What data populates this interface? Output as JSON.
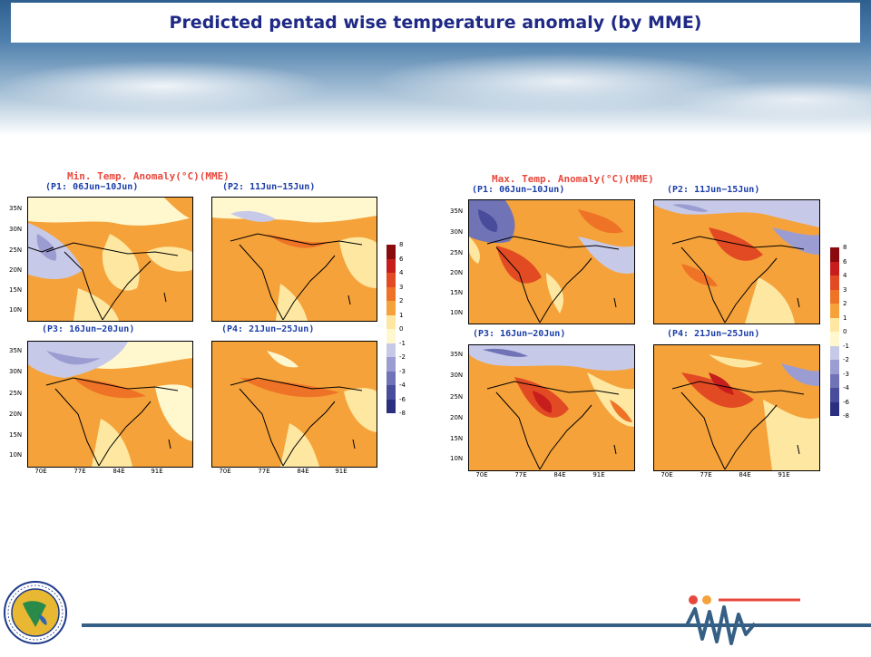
{
  "title": "Predicted pentad wise temperature anomaly (by MME)",
  "colors": {
    "title": "#1f2a86",
    "panel_title": "#e8483c",
    "subtitle": "#1b3ea8",
    "bottom_line": "#355f84",
    "base_anomaly": "#f5a23a"
  },
  "legend": {
    "labels": [
      "8",
      "6",
      "4",
      "3",
      "2",
      "1",
      "0",
      "-1",
      "-2",
      "-3",
      "-4",
      "-6",
      "-8"
    ],
    "colors": [
      "#8b0a0e",
      "#c71e1d",
      "#e24a23",
      "#ef7326",
      "#f5a23a",
      "#fde7a1",
      "#fff8cf",
      "#c7c9e8",
      "#9b9dd2",
      "#7073b5",
      "#484c9b",
      "#2b2f7e"
    ]
  },
  "lat_labels": [
    "35N",
    "30N",
    "25N",
    "20N",
    "15N",
    "10N"
  ],
  "lon_labels": [
    "70E",
    "77E",
    "84E",
    "91E"
  ],
  "left": {
    "heading": "Min. Temp. Anomaly(°C)(MME)",
    "panels": [
      {
        "period": "(P1: 06Jun−10Jun)"
      },
      {
        "period": "(P2: 11Jun−15Jun)"
      },
      {
        "period": "(P3: 16Jun−20Jun)"
      },
      {
        "period": "(P4: 21Jun−25Jun)"
      }
    ]
  },
  "right": {
    "heading": "Max. Temp. Anomaly(°C)(MME)",
    "panels": [
      {
        "period": "(P1: 06Jun−10Jun)"
      },
      {
        "period": "(P2: 11Jun−15Jun)"
      },
      {
        "period": "(P3: 16Jun−20Jun)"
      },
      {
        "period": "(P4: 21Jun−25Jun)"
      }
    ]
  },
  "logos": {
    "left": "iitm-emblem-icon",
    "right": "mission-logo-icon"
  }
}
